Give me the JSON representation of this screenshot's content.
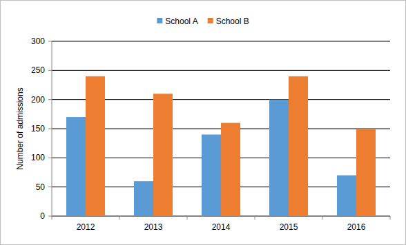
{
  "chart_data": {
    "type": "bar",
    "y_label": "Number of admissions",
    "categories": [
      "2012",
      "2013",
      "2014",
      "2015",
      "2016"
    ],
    "series": [
      {
        "name": "School A",
        "color": "#5b9bd5",
        "values": [
          170,
          60,
          140,
          200,
          70
        ]
      },
      {
        "name": "School B",
        "color": "#ed7d31",
        "values": [
          240,
          210,
          160,
          240,
          150
        ]
      }
    ],
    "ylim": [
      0,
      300
    ],
    "yticks": [
      0,
      50,
      100,
      150,
      200,
      250,
      300
    ],
    "grid": true,
    "legend": "top"
  }
}
